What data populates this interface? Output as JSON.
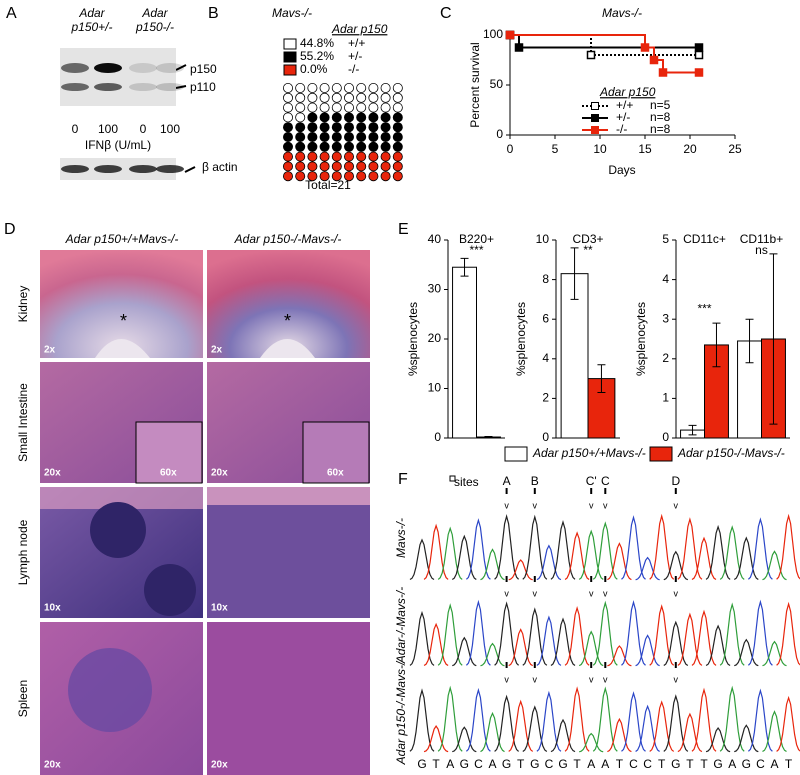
{
  "panel_labels": [
    "A",
    "B",
    "C",
    "D",
    "E",
    "F"
  ],
  "panel_a": {
    "genotypes": [
      {
        "gene": "Adar",
        "allele": "p150+/-"
      },
      {
        "gene": "Adar",
        "allele": "p150-/-"
      }
    ],
    "bands": [
      "p150",
      "p110"
    ],
    "doses": [
      "0",
      "100",
      "0",
      "100"
    ],
    "dose_label": "IFNβ (U/mL)",
    "loading_control": "β actin"
  },
  "panel_b": {
    "title": "Mavs-/-",
    "legend_title": "Adar p150",
    "rows": [
      {
        "percent": "44.8%",
        "genotype": "+/+",
        "color": "#ffffff"
      },
      {
        "percent": "55.2%",
        "genotype": "+/-",
        "color": "#000000"
      },
      {
        "percent": "0.0%",
        "genotype": "-/-",
        "color": "#e8250c"
      }
    ],
    "dot_counts": [
      32,
      38,
      30
    ],
    "total": "Total=21"
  },
  "chart_data": [
    {
      "type": "survival",
      "title": "Mavs-/-",
      "ylabel": "Percent survival",
      "xlabel": "Days",
      "xlim": [
        0,
        25
      ],
      "xticks": [
        0,
        5,
        10,
        15,
        20,
        25
      ],
      "ylim": [
        0,
        100
      ],
      "yticks": [
        0,
        50,
        100
      ],
      "legend_title": "Adar p150",
      "series": [
        {
          "name": "+/+",
          "n_label": "n=5",
          "color": "#000000",
          "dashed": true,
          "open_marker": true,
          "x": [
            0,
            9,
            21
          ],
          "values": [
            100,
            80,
            80
          ]
        },
        {
          "name": "+/-",
          "n_label": "n=8",
          "color": "#000000",
          "dashed": false,
          "open_marker": false,
          "x": [
            0,
            1,
            21
          ],
          "values": [
            100,
            87.5,
            87.5
          ]
        },
        {
          "name": "-/-",
          "n_label": "n=8",
          "color": "#e8250c",
          "dashed": false,
          "open_marker": false,
          "x": [
            0,
            15,
            16,
            17,
            21
          ],
          "values": [
            100,
            87.5,
            75,
            62.5,
            62.5
          ]
        }
      ]
    },
    {
      "type": "bar",
      "title": "B220+",
      "ylabel": "%splenocytes",
      "ylim": [
        0,
        40
      ],
      "yticks": [
        0,
        10,
        20,
        30,
        40
      ],
      "categories": [
        null
      ],
      "significance": [
        "***"
      ],
      "series": [
        {
          "color": "#ffffff",
          "values": [
            34.5
          ],
          "errors": [
            1.8
          ]
        },
        {
          "color": "#e8250c",
          "values": [
            0.2
          ],
          "errors": [
            0.1
          ]
        }
      ]
    },
    {
      "type": "bar",
      "title": "CD3+",
      "ylabel": "%splenocytes",
      "ylim": [
        0,
        10
      ],
      "yticks": [
        0,
        2,
        4,
        6,
        8,
        10
      ],
      "categories": [
        null
      ],
      "significance": [
        "**"
      ],
      "series": [
        {
          "color": "#ffffff",
          "values": [
            8.3
          ],
          "errors": [
            1.3
          ]
        },
        {
          "color": "#e8250c",
          "values": [
            3.0
          ],
          "errors": [
            0.7
          ]
        }
      ]
    },
    {
      "type": "bar",
      "ylabel": "%splenocytes",
      "ylim": [
        0,
        5
      ],
      "yticks": [
        0,
        1,
        2,
        3,
        4,
        5
      ],
      "categories": [
        "CD11c+",
        "CD11b+"
      ],
      "significance": [
        "***",
        "ns"
      ],
      "series": [
        {
          "color": "#ffffff",
          "values": [
            0.2,
            2.45
          ],
          "errors": [
            0.12,
            0.55
          ]
        },
        {
          "color": "#e8250c",
          "values": [
            2.35,
            2.5
          ],
          "errors": [
            0.55,
            2.15
          ]
        }
      ]
    }
  ],
  "panel_d": {
    "columns": [
      "Adar p150+/+Mavs-/-",
      "Adar p150-/-Mavs-/-"
    ],
    "rows": [
      "Kidney",
      "Small Intestine",
      "Lymph node",
      "Spleen"
    ],
    "magnifications": [
      [
        "2x",
        "2x"
      ],
      [
        "20x",
        "60x",
        "20x",
        "60x"
      ],
      [
        "10x",
        "10x"
      ],
      [
        "20x",
        "20x"
      ]
    ]
  },
  "panel_e_legend": [
    {
      "name": "Adar p150+/+Mavs-/-",
      "color": "#ffffff"
    },
    {
      "name": "Adar p150-/-Mavs-/-",
      "color": "#e8250c"
    }
  ],
  "panel_f": {
    "sites_label": "sites",
    "sites": [
      "A",
      "B",
      "C'",
      "C",
      "D"
    ],
    "samples": [
      "Mavs-/-",
      "Adar-/-Mavs-/-",
      "Adar p150-/-Mavs-/-"
    ],
    "sequence": [
      "G",
      "T",
      "A",
      "G",
      "C",
      "A",
      "G",
      "T",
      "G",
      "C",
      "G",
      "T",
      "A",
      "A",
      "T",
      "C",
      "C",
      "T",
      "G",
      "T",
      "T",
      "G",
      "A",
      "G",
      "C",
      "A",
      "T"
    ],
    "base_colors": {
      "G": "#222222",
      "T": "#e8250c",
      "A": "#2f9e3a",
      "C": "#2b46c8"
    }
  }
}
